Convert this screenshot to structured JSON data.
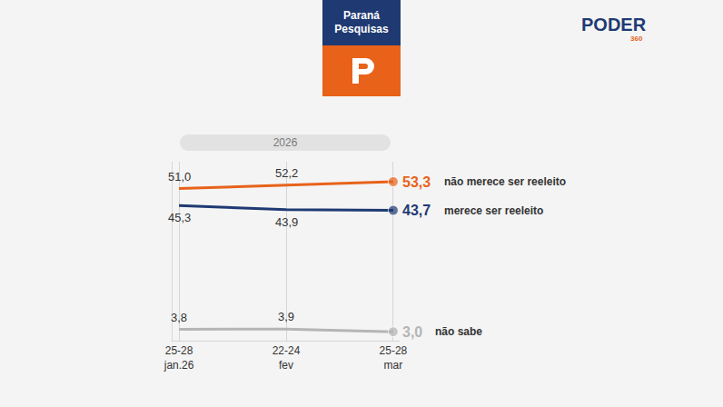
{
  "header": {
    "title": "Paraná Pesquisas",
    "brand": "PODER",
    "brand_sub": "360"
  },
  "chart_data": {
    "type": "line",
    "title": "2026",
    "categories": [
      "25-28 jan.26",
      "22-24 fev",
      "25-28 mar"
    ],
    "series": [
      {
        "name": "não merece ser reeleito",
        "color": "#e8621a",
        "values": [
          51.0,
          52.2,
          53.3
        ],
        "value_labels": [
          "51,0",
          "52,2",
          "53,3"
        ]
      },
      {
        "name": "merece ser reeleito",
        "color": "#1f3a73",
        "values": [
          45.3,
          43.9,
          43.7
        ],
        "value_labels": [
          "45,3",
          "43,9",
          "43,7"
        ]
      },
      {
        "name": "não sabe",
        "color": "#b5b5b5",
        "values": [
          3.8,
          3.9,
          3.0
        ],
        "value_labels": [
          "3,8",
          "3,9",
          "3,0"
        ]
      }
    ],
    "ylim": [
      0,
      60
    ],
    "yticks": [],
    "tick_labels": "x",
    "data_labels": true,
    "grid": true
  }
}
